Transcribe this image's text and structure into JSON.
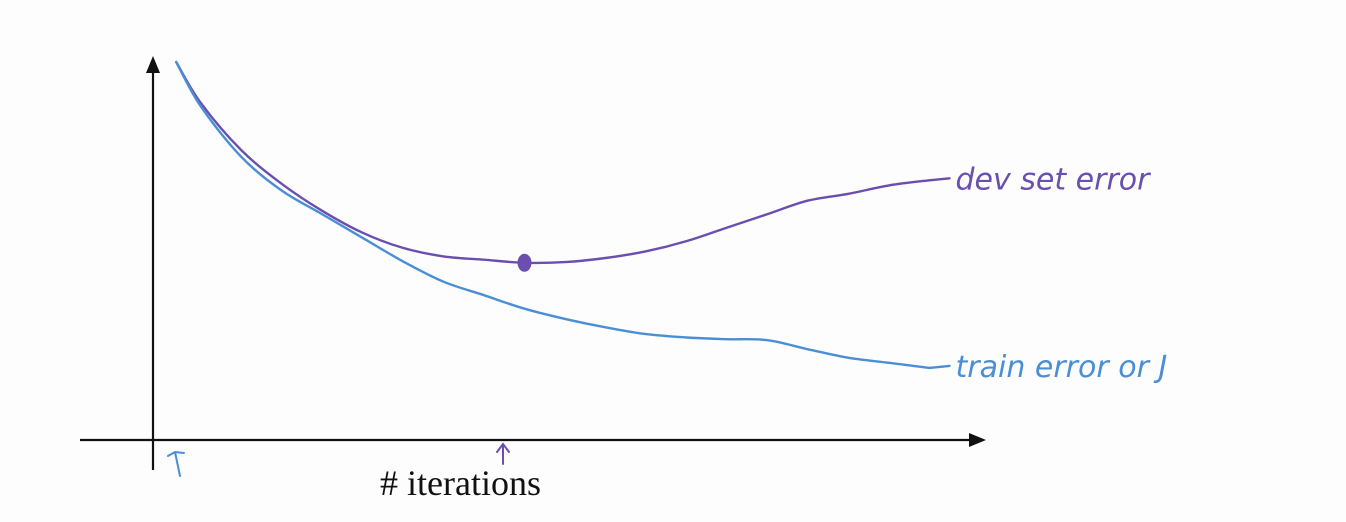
{
  "chart_data": {
    "type": "line",
    "title": "",
    "xlabel": "# iterations",
    "ylabel": "",
    "grid": false,
    "legend": "none",
    "xlim": [
      0,
      100
    ],
    "ylim": [
      0,
      100
    ],
    "axis_color": "#111111",
    "series": [
      {
        "name": "dev set error",
        "color": "#6a4fb0",
        "x": [
          2,
          5,
          10,
          15,
          20,
          25,
          30,
          35,
          40,
          45,
          50,
          55,
          60,
          65,
          70,
          75,
          80,
          85,
          90,
          95
        ],
        "y": [
          100,
          88,
          74,
          64,
          56,
          49.5,
          45,
          42.5,
          41.5,
          40.6,
          40.8,
          42,
          44,
          47,
          51,
          55,
          59,
          61,
          63.5,
          65
        ]
      },
      {
        "name": "train error or J",
        "color": "#4a8fd6",
        "x": [
          2,
          5,
          10,
          15,
          20,
          25,
          30,
          35,
          40,
          45,
          50,
          55,
          60,
          65,
          70,
          75,
          80,
          85,
          90,
          95
        ],
        "y": [
          100,
          87,
          72,
          62,
          55,
          48,
          41,
          35,
          31,
          27,
          24,
          21.5,
          19.5,
          18.5,
          18,
          17.7,
          15,
          12.5,
          11,
          9.5
        ]
      }
    ],
    "annotations": [
      {
        "text": "dev set error",
        "series": "dev set error"
      },
      {
        "text": "train error or J",
        "series": "train error or J"
      },
      {
        "text": "marked minimum",
        "series": "dev set error",
        "x": 45,
        "y": 40.6
      }
    ]
  }
}
